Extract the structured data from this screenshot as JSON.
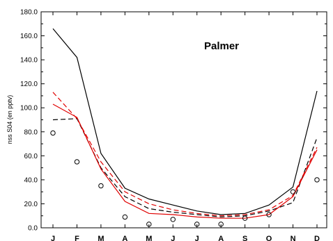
{
  "chart_data": {
    "type": "line",
    "title": "Palmer",
    "xlabel": "",
    "ylabel": "nss S04 (en pptv)",
    "categories": [
      "J",
      "F",
      "M",
      "A",
      "M",
      "J",
      "J",
      "A",
      "S",
      "O",
      "N",
      "D"
    ],
    "ylim": [
      0,
      180
    ],
    "yticks": [
      0,
      20,
      40,
      60,
      80,
      100,
      120,
      140,
      160,
      180
    ],
    "grid": false,
    "series": [
      {
        "color": "#000000",
        "dash": "solid",
        "values": [
          166,
          142,
          62,
          33,
          24,
          19,
          14,
          11,
          12,
          19,
          34,
          114
        ]
      },
      {
        "color": "#000000",
        "dash": "dashed",
        "values": [
          90,
          91,
          50,
          26,
          16,
          13,
          11,
          9,
          10,
          14,
          21,
          75
        ]
      },
      {
        "color": "#e00000",
        "dash": "solid",
        "values": [
          103,
          92,
          49,
          22,
          12,
          11,
          9,
          8,
          8,
          11,
          26,
          65
        ]
      },
      {
        "color": "#e00000",
        "dash": "dashed",
        "values": [
          113,
          91,
          55,
          30,
          20,
          15,
          12,
          10,
          11,
          15,
          27,
          67
        ]
      }
    ],
    "observations": {
      "marker": "circle",
      "color": "#000000",
      "values": [
        79,
        55,
        35,
        9,
        3,
        7,
        3,
        3,
        8,
        11,
        30,
        40
      ]
    }
  }
}
